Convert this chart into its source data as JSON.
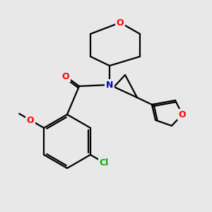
{
  "bg_color": "#e8e8e8",
  "bond_color": "#000000",
  "atom_colors": {
    "O": "#ff0000",
    "N": "#0000cc",
    "Cl": "#00aa00",
    "C": "#000000"
  },
  "font_size": 9,
  "fig_size": [
    3.0,
    3.0
  ],
  "dpi": 100
}
